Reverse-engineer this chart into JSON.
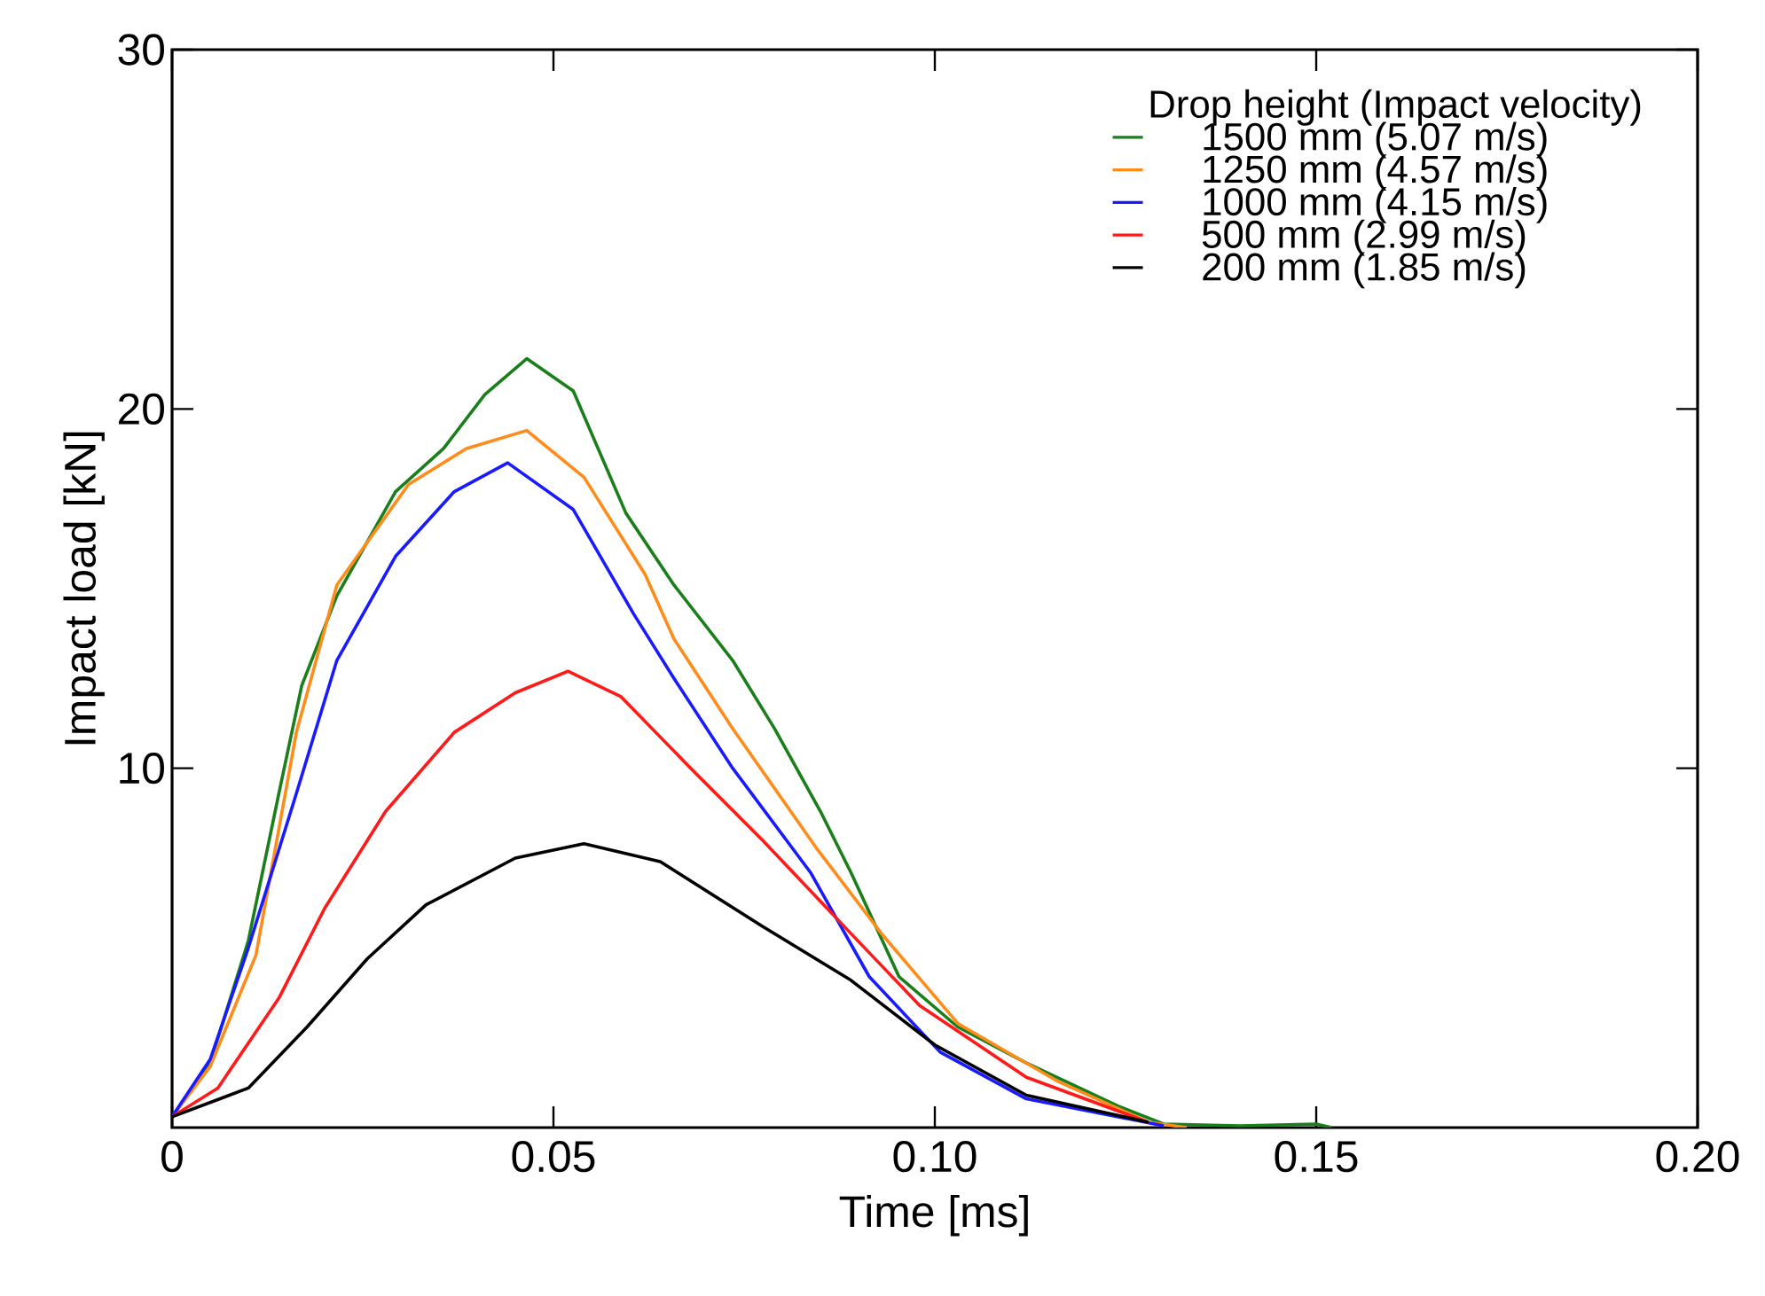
{
  "chart_data": {
    "type": "line",
    "xlabel": "Time [ms]",
    "ylabel": "Impact load [kN]",
    "legend_title": "Drop height (Impact velocity)",
    "legend": "top right",
    "xlim": [
      0,
      0.2
    ],
    "ylim": [
      0,
      30
    ],
    "xticks": [
      0,
      0.05,
      {
        "value": 0.1,
        "label": "0.10"
      },
      0.15,
      {
        "value": 0.2,
        "label": "0.20"
      }
    ],
    "yticks": [
      10,
      20,
      30
    ],
    "series": [
      {
        "name": "1500 mm (5.07 m/s)",
        "color": "#1a7f1a",
        "x": [
          0,
          0.005,
          0.01,
          0.014,
          0.017,
          0.0216,
          0.0293,
          0.0356,
          0.041,
          0.0465,
          0.0526,
          0.0595,
          0.0658,
          0.0735,
          0.079,
          0.085,
          0.089,
          0.0953,
          0.103,
          0.112,
          0.124,
          0.13,
          0.14,
          0.15,
          0.152
        ],
        "values": [
          0.3,
          1.8,
          5.2,
          9.3,
          12.3,
          14.8,
          17.7,
          18.9,
          20.4,
          21.4,
          20.5,
          17.1,
          15.1,
          13.0,
          11.1,
          8.8,
          7.1,
          4.2,
          2.8,
          1.8,
          0.6,
          0.1,
          0.05,
          0.1,
          0
        ]
      },
      {
        "name": "1250 mm (4.57 m/s)",
        "color": "#ff8c1a",
        "x": [
          0,
          0.005,
          0.011,
          0.0163,
          0.0216,
          0.031,
          0.0386,
          0.0465,
          0.054,
          0.062,
          0.0658,
          0.0735,
          0.0844,
          0.093,
          0.103,
          0.116,
          0.128,
          0.133
        ],
        "values": [
          0.3,
          1.7,
          4.8,
          11.0,
          15.1,
          17.9,
          18.9,
          19.4,
          18.1,
          15.4,
          13.6,
          11.1,
          7.8,
          5.4,
          2.9,
          1.3,
          0.15,
          0
        ]
      },
      {
        "name": "1000 mm (4.15 m/s)",
        "color": "#1a1aff",
        "x": [
          0,
          0.005,
          0.01,
          0.0163,
          0.0216,
          0.0293,
          0.037,
          0.044,
          0.0526,
          0.0605,
          0.0658,
          0.0735,
          0.0837,
          0.0914,
          0.1007,
          0.112,
          0.13
        ],
        "values": [
          0.3,
          1.9,
          5.0,
          9.3,
          13.0,
          15.9,
          17.7,
          18.5,
          17.2,
          14.3,
          12.5,
          10.0,
          7.1,
          4.2,
          2.1,
          0.8,
          0.05
        ]
      },
      {
        "name": "500 mm (2.99 m/s)",
        "color": "#ff1a1a",
        "x": [
          0,
          0.006,
          0.014,
          0.02,
          0.028,
          0.037,
          0.045,
          0.0519,
          0.0588,
          0.068,
          0.0774,
          0.089,
          0.098,
          0.112,
          0.128
        ],
        "values": [
          0.3,
          1.1,
          3.6,
          6.1,
          8.8,
          11.0,
          12.1,
          12.7,
          12.0,
          10.0,
          8.0,
          5.4,
          3.4,
          1.4,
          0.15
        ]
      },
      {
        "name": "200 mm (1.85 m/s)",
        "color": "#000000",
        "x": [
          0,
          0.01,
          0.0177,
          0.0256,
          0.0333,
          0.045,
          0.054,
          0.064,
          0.0774,
          0.089,
          0.1,
          0.112,
          0.128
        ],
        "values": [
          0.3,
          1.1,
          2.8,
          4.7,
          6.2,
          7.5,
          7.9,
          7.4,
          5.6,
          4.1,
          2.3,
          0.9,
          0.15
        ]
      }
    ]
  }
}
